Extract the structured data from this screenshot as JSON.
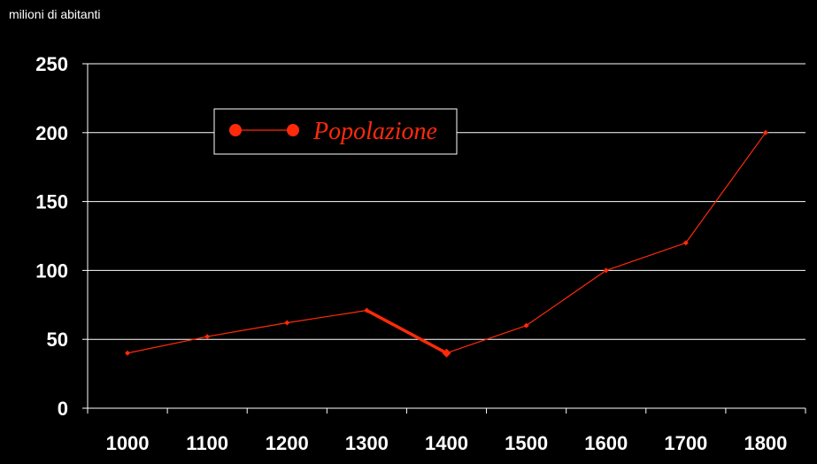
{
  "chart_data": {
    "type": "line",
    "ylabel": "milioni di abitanti",
    "categories": [
      "1000",
      "1100",
      "1200",
      "1300",
      "1400",
      "1500",
      "1600",
      "1700",
      "1800"
    ],
    "series": [
      {
        "name": "Popolazione",
        "values": [
          40,
          52,
          62,
          71,
          40,
          60,
          100,
          120,
          200
        ],
        "color": "#ff2a0a"
      }
    ],
    "ylim": [
      0,
      250
    ],
    "yticks": [
      0,
      50,
      100,
      150,
      200,
      250
    ],
    "grid": true,
    "legend_position": "top-left",
    "background": "#000000"
  }
}
